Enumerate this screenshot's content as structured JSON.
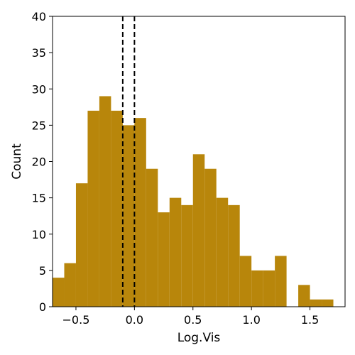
{
  "chart_data": {
    "type": "bar",
    "xlabel": "Log.Vis",
    "ylabel": "Count",
    "xlim": [
      -0.7,
      1.8
    ],
    "ylim": [
      0,
      40
    ],
    "bin_width": 0.1,
    "bin_left_edges": [
      -0.7,
      -0.6,
      -0.5,
      -0.4,
      -0.3,
      -0.2,
      -0.1,
      0.0,
      0.1,
      0.2,
      0.3,
      0.4,
      0.5,
      0.6,
      0.7,
      0.8,
      0.9,
      1.0,
      1.1,
      1.2,
      1.3,
      1.4,
      1.5,
      1.6
    ],
    "values": [
      4,
      6,
      17,
      27,
      29,
      27,
      25,
      26,
      19,
      13,
      15,
      14,
      21,
      19,
      15,
      14,
      7,
      5,
      5,
      7,
      0,
      3,
      1,
      1
    ],
    "bar_color": "#b8860b",
    "x_ticks": [
      -0.5,
      0.0,
      0.5,
      1.0,
      1.5
    ],
    "x_tick_labels": [
      "−0.5",
      "0.0",
      "0.5",
      "1.0",
      "1.5"
    ],
    "y_ticks": [
      0,
      5,
      10,
      15,
      20,
      25,
      30,
      35,
      40
    ],
    "y_tick_labels": [
      "0",
      "5",
      "10",
      "15",
      "20",
      "25",
      "30",
      "35",
      "40"
    ],
    "reference_lines": [
      {
        "x": -0.1,
        "style": "dashed",
        "color": "#000000"
      },
      {
        "x": 0.0,
        "style": "dashed",
        "color": "#000000"
      }
    ],
    "grid": false,
    "legend": "none"
  }
}
